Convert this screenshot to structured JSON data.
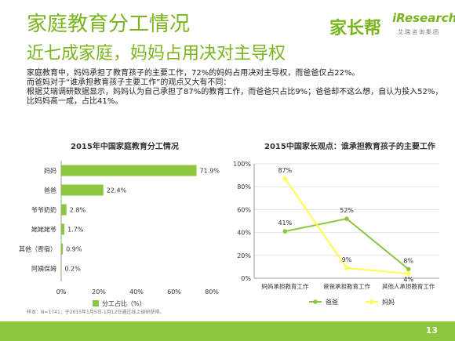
{
  "header": {
    "title": "家庭教育分工情况",
    "subtitle": "近七成家庭，妈妈占用决对主导权",
    "logo_left": "家长帮",
    "logo_right": "iResearch",
    "logo_right_sub": "艾瑞咨询集团"
  },
  "body": [
    "家庭教育中，妈妈承担了教育孩子的主要工作，72%的妈妈占用决对主导权，而爸爸仅占22%。",
    "而爸妈对于“谁承担教育孩子主要工作”的观点又大有不同：",
    "根据艾瑞调研数据显示，妈妈认为自己承担了87%的教育工作，而爸爸只占比9%；爸爸却不这么想，自认为投入52%，",
    "比妈妈高一成，占比41%。"
  ],
  "source": "样本：N=1741；于2015年1月5日-1月12日通过线上调研获得。",
  "page_number": "13",
  "colors": {
    "green": "#8dc63f",
    "yellow": "#ffff4d",
    "title": "#7ab51d"
  },
  "chart_data": [
    {
      "type": "bar",
      "orientation": "horizontal",
      "title": "2015年中国家庭教育分工情况",
      "categories": [
        "妈妈",
        "爸爸",
        "爷爷奶奶",
        "姥姥姥爷",
        "其他（寄宿）",
        "阿姨保姆"
      ],
      "values": [
        71.9,
        22.4,
        2.8,
        1.7,
        0.9,
        0.2
      ],
      "value_labels": [
        "71.9%",
        "22.4%",
        "2.8%",
        "1.7%",
        "0.9%",
        "0.2%"
      ],
      "xlim": [
        0,
        80
      ],
      "xticks": [
        "0%",
        "20%",
        "40%",
        "60%",
        "80%"
      ],
      "legend": "分工占比（%）",
      "color": "#8dc63f"
    },
    {
      "type": "line",
      "title": "2015中国家长观点：谁承担教育孩子的主要工作",
      "categories": [
        "妈妈承担教育工作",
        "爸爸承担教育工作",
        "其他人承担教育工作"
      ],
      "ylim": [
        0,
        100
      ],
      "yticks": [
        "0%",
        "20%",
        "40%",
        "60%",
        "80%",
        "100%"
      ],
      "series": [
        {
          "name": "爸爸",
          "values": [
            41,
            52,
            8
          ],
          "labels": [
            "41%",
            "52%",
            "8%"
          ],
          "color": "#8dc63f"
        },
        {
          "name": "妈妈",
          "values": [
            87,
            9,
            4
          ],
          "labels": [
            "87%",
            "9%",
            "4%"
          ],
          "color": "#ffff4d"
        }
      ],
      "legend_position": "bottom"
    }
  ]
}
